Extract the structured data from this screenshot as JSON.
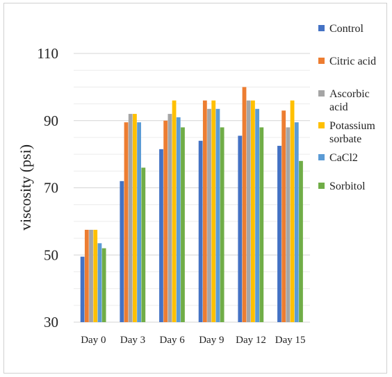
{
  "chart_data": {
    "type": "bar",
    "title": "",
    "xlabel": "",
    "ylabel": "viscosity (psi)",
    "ylim": [
      30,
      110
    ],
    "yticks": [
      30,
      50,
      70,
      90,
      110
    ],
    "grid": true,
    "legend_position": "right",
    "categories": [
      "Day 0",
      "Day 3",
      "Day 6",
      "Day 9",
      "Day 12",
      "Day 15"
    ],
    "series": [
      {
        "name": "Control",
        "color": "#4472C4",
        "values": [
          49.5,
          72,
          81.5,
          84,
          85.5,
          82.5
        ]
      },
      {
        "name": "Citric acid",
        "color": "#ED7D31",
        "values": [
          57.5,
          89.5,
          90,
          96,
          100,
          93
        ]
      },
      {
        "name": "Ascorbic acid",
        "color": "#A5A5A5",
        "values": [
          57.5,
          92,
          92,
          93.5,
          96,
          88
        ]
      },
      {
        "name": "Potassium sorbate",
        "color": "#FFC000",
        "values": [
          57.5,
          92,
          96,
          96,
          96,
          96
        ]
      },
      {
        "name": "CaCl2",
        "color": "#5B9BD5",
        "values": [
          53.5,
          89.5,
          91,
          93.5,
          93.5,
          89.5
        ]
      },
      {
        "name": "Sorbitol",
        "color": "#70AD47",
        "values": [
          52,
          76,
          88,
          88,
          88,
          78
        ]
      }
    ]
  }
}
